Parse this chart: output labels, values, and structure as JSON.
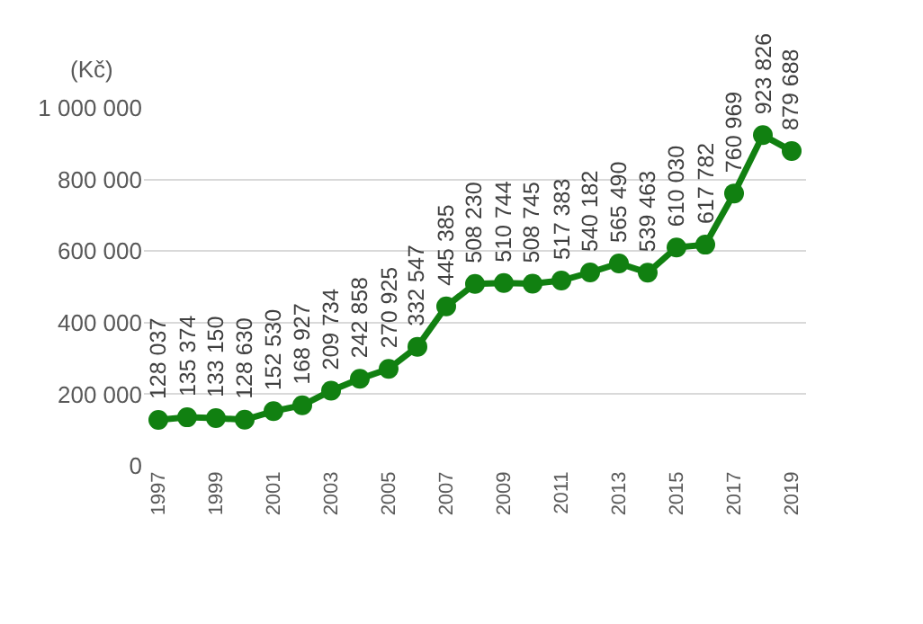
{
  "chart_data": {
    "type": "line",
    "ylabel": "(Kč)",
    "categories": [
      "1997",
      null,
      "1999",
      null,
      "2001",
      null,
      "2003",
      null,
      "2005",
      null,
      "2007",
      null,
      "2009",
      null,
      "2011",
      null,
      "2013",
      null,
      "2015",
      null,
      "2017",
      null,
      "2019"
    ],
    "series": [
      {
        "color": "#118011",
        "values": [
          128037,
          135374,
          133150,
          128630,
          152530,
          168927,
          209734,
          242858,
          270925,
          332547,
          445385,
          508230,
          510744,
          508745,
          517383,
          540182,
          565490,
          539463,
          610030,
          617782,
          760969,
          923826,
          879688
        ],
        "value_labels": [
          "128 037",
          "135 374",
          "133 150",
          "128 630",
          "152 530",
          "168 927",
          "209 734",
          "242 858",
          "270 925",
          "332 547",
          "445 385",
          "508 230",
          "510 744",
          "508 745",
          "517 383",
          "540 182",
          "565 490",
          "539 463",
          "610 030",
          "617 782",
          "760 969",
          "923 826",
          "879 688"
        ]
      }
    ],
    "ylim": [
      0,
      1000000
    ],
    "yticks": [
      0,
      {
        "value": 200000,
        "label": "200 000"
      },
      {
        "value": 400000,
        "label": "400 000"
      },
      {
        "value": 600000,
        "label": "600 000"
      },
      {
        "value": 800000,
        "label": "800 000"
      },
      {
        "value": 1000000,
        "label": "1 000 000"
      }
    ],
    "grid": "y",
    "marker": "circle",
    "line_style": "solid",
    "legend": false
  }
}
